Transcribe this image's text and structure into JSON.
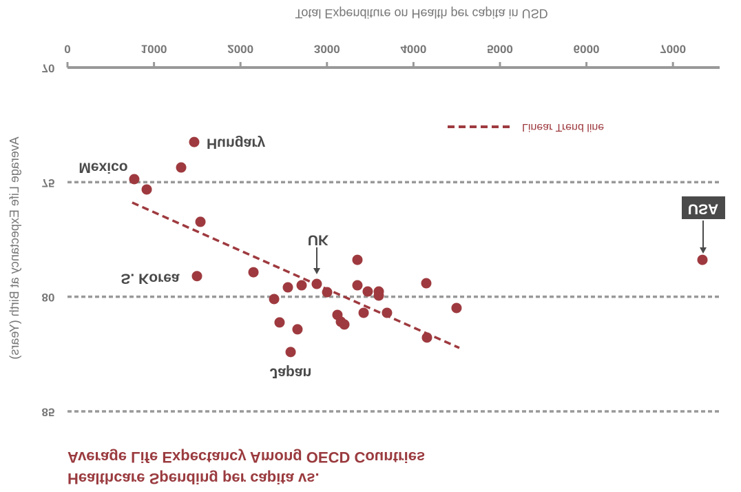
{
  "chart_data": {
    "type": "scatter",
    "title": "Healthcare Spending per capita vs.",
    "subtitle": "Average Life Expectancy Among OECD Countries",
    "x_label": "Total Expenditure on Health per capita in USD",
    "y_label": "Average Life Expectancy at Birth (Years)",
    "x": [
      772,
      916,
      1465,
      1314,
      1537,
      1497,
      2150,
      2389,
      2452,
      2548,
      2707,
      2659,
      2580,
      2882,
      3002,
      3121,
      3161,
      3201,
      3352,
      3352,
      3424,
      3471,
      3599,
      3599,
      3694,
      4148,
      4156,
      4498,
      7341
    ],
    "values": [
      74.87,
      75.32,
      73.25,
      74.36,
      76.73,
      79.1,
      78.93,
      80.1,
      81.12,
      79.59,
      79.5,
      81.42,
      82.41,
      79.44,
      79.8,
      80.79,
      81.09,
      81.21,
      78.39,
      79.5,
      80.7,
      79.77,
      79.77,
      79.95,
      80.7,
      79.41,
      81.78,
      80.49,
      78.39
    ],
    "color": "#9e3a3f",
    "trend": {
      "name": "Linear Trend line",
      "x": [
        748,
        4530
      ],
      "values": [
        75.89,
        82.23
      ],
      "color": "#9e3a3f"
    },
    "annotations": [
      "Mexico",
      "Hungary",
      "S. Korea",
      "UK",
      "Japan",
      "USA"
    ],
    "xlim": [
      0,
      7540
    ],
    "xticks": [
      0,
      1000,
      2000,
      3000,
      4000,
      5000,
      6000,
      7000
    ],
    "ylim": [
      70,
      85
    ],
    "yticks": [
      70,
      75,
      80,
      85
    ],
    "grid": true,
    "legend": "top-right"
  }
}
